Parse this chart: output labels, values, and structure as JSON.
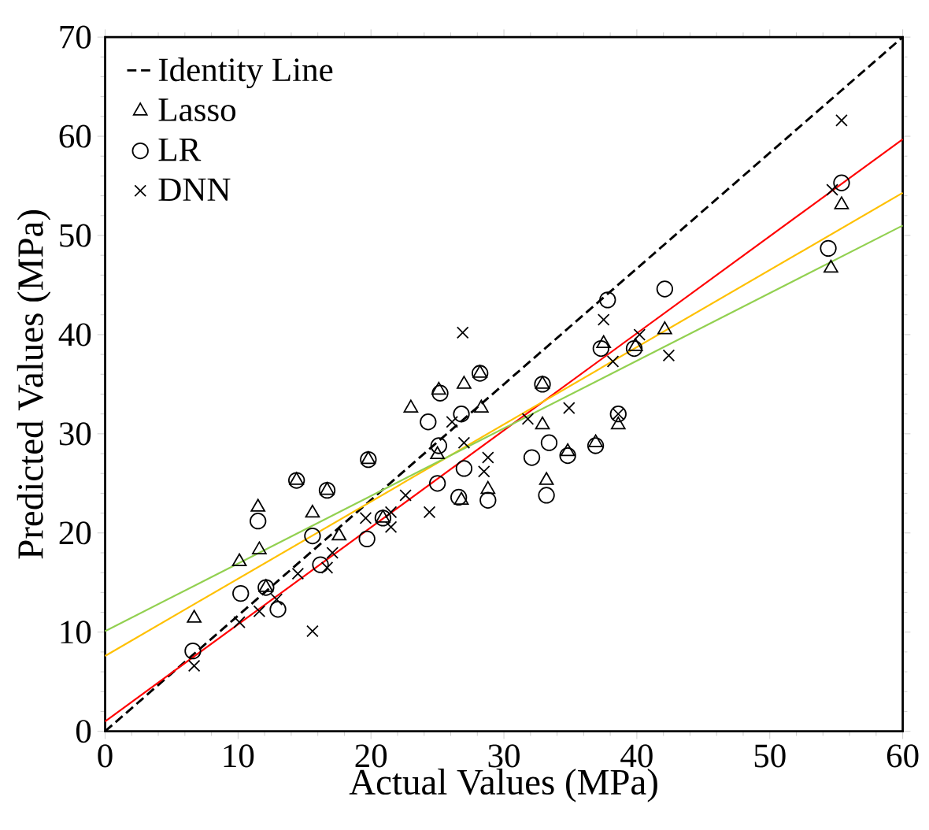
{
  "chart_data": {
    "type": "scatter",
    "xlabel": "Actual Values (MPa)",
    "ylabel": "Predicted Values (MPa)",
    "xlim": [
      0,
      60
    ],
    "ylim": [
      0,
      70
    ],
    "xticks": [
      0,
      10,
      20,
      30,
      40,
      50,
      60
    ],
    "yticks": [
      0,
      10,
      20,
      30,
      40,
      50,
      60,
      70
    ],
    "grid": false,
    "legend": "top left",
    "series": [
      {
        "name": "Identity Line",
        "type": "line",
        "line_style": "dashed",
        "marker": "none",
        "color": "#000000",
        "x": [
          0,
          60
        ],
        "values": [
          0,
          70
        ]
      },
      {
        "name": "Lasso",
        "marker": "triangle",
        "color": "#000000",
        "x": [
          6.7,
          10.1,
          11.5,
          11.6,
          14.4,
          15.6,
          16.7,
          19.8,
          23.0,
          25.1,
          27.0,
          28.2,
          28.3,
          26.8,
          28.8,
          25.0,
          32.9,
          32.9,
          33.2,
          34.8,
          36.9,
          38.6,
          37.5,
          39.9,
          42.1,
          54.6,
          55.4,
          20.9,
          17.6,
          12.1
        ],
        "values": [
          11.4,
          17.1,
          22.6,
          18.3,
          25.3,
          22.0,
          24.3,
          27.4,
          32.6,
          34.4,
          35.0,
          36.1,
          32.6,
          23.3,
          24.4,
          27.9,
          35.0,
          30.9,
          25.3,
          28.2,
          29.1,
          30.9,
          39.1,
          38.8,
          40.5,
          46.7,
          53.1,
          21.5,
          19.7,
          14.5
        ]
      },
      {
        "name": "LR",
        "marker": "circle",
        "color": "#000000",
        "x": [
          6.6,
          10.2,
          11.5,
          12.1,
          13.0,
          14.4,
          15.6,
          16.2,
          16.7,
          19.7,
          19.8,
          20.9,
          24.3,
          25.1,
          25.0,
          25.2,
          26.6,
          27.0,
          26.8,
          28.2,
          28.8,
          32.1,
          32.9,
          33.4,
          33.2,
          34.8,
          36.9,
          38.6,
          37.8,
          37.3,
          39.8,
          42.1,
          54.4,
          55.4
        ],
        "values": [
          8.1,
          13.9,
          21.2,
          14.5,
          12.3,
          25.3,
          19.7,
          16.8,
          24.3,
          19.4,
          27.4,
          21.5,
          31.2,
          28.8,
          25.0,
          34.1,
          23.6,
          26.5,
          32.0,
          36.1,
          23.3,
          27.6,
          35.0,
          29.1,
          23.8,
          27.8,
          28.8,
          32.0,
          43.5,
          38.6,
          38.6,
          44.6,
          48.7,
          55.3
        ]
      },
      {
        "name": "DNN",
        "marker": "cross",
        "color": "#000000",
        "x": [
          6.7,
          10.1,
          11.6,
          12.9,
          15.6,
          14.5,
          16.7,
          17.1,
          19.6,
          21.5,
          22.6,
          24.4,
          26.9,
          27.0,
          28.5,
          28.8,
          31.8,
          34.9,
          38.6,
          37.5,
          38.2,
          40.2,
          42.4,
          54.7,
          55.4,
          21.5,
          26.1
        ],
        "values": [
          6.6,
          11.0,
          12.1,
          13.3,
          10.1,
          15.9,
          16.5,
          18.0,
          21.5,
          22.1,
          23.8,
          22.1,
          40.2,
          29.1,
          26.2,
          27.6,
          31.5,
          32.6,
          32.0,
          41.5,
          37.3,
          40.0,
          37.9,
          54.6,
          61.6,
          20.6,
          31.2
        ]
      },
      {
        "type": "line",
        "line_style": "solid",
        "marker": "none",
        "color": "#ff0000",
        "x": [
          0,
          60
        ],
        "values": [
          1.0,
          59.7
        ]
      },
      {
        "type": "line",
        "line_style": "solid",
        "marker": "none",
        "color": "#ffc000",
        "x": [
          0,
          60
        ],
        "values": [
          7.6,
          54.3
        ]
      },
      {
        "type": "line",
        "line_style": "solid",
        "marker": "none",
        "color": "#92d050",
        "x": [
          0,
          60
        ],
        "values": [
          10.1,
          51.0
        ]
      }
    ]
  }
}
